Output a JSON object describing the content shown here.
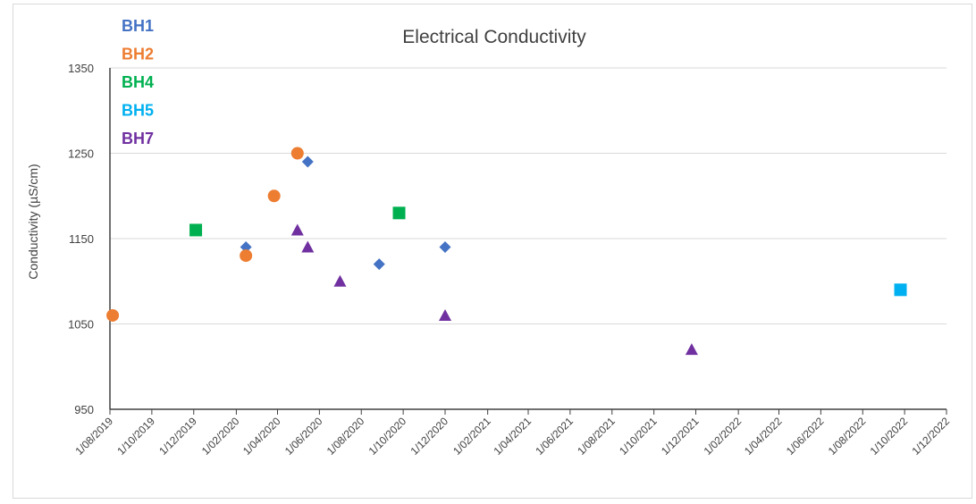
{
  "chart_data": {
    "type": "scatter",
    "title": "Electrical Conductivity",
    "xlabel": "",
    "ylabel": "Conductivity (µS/cm)",
    "xlim": [
      "2019-08-01",
      "2022-12-01"
    ],
    "ylim": [
      950,
      1350
    ],
    "y_ticks": [
      950,
      1050,
      1150,
      1250,
      1350
    ],
    "x_tick_labels": [
      "1/08/2019",
      "1/10/2019",
      "1/12/2019",
      "1/02/2020",
      "1/04/2020",
      "1/06/2020",
      "1/08/2020",
      "1/10/2020",
      "1/12/2020",
      "1/02/2021",
      "1/04/2021",
      "1/06/2021",
      "1/08/2021",
      "1/10/2021",
      "1/12/2021",
      "1/02/2022",
      "1/04/2022",
      "1/06/2022",
      "1/08/2022",
      "1/10/2022",
      "1/12/2022"
    ],
    "grid": "horizontal",
    "legend_position": "top-left",
    "series": [
      {
        "name": "BH1",
        "marker": "diamond",
        "color": "#4472c4",
        "points": [
          {
            "x": "2020-02-15",
            "y": 1140
          },
          {
            "x": "2020-05-15",
            "y": 1240
          },
          {
            "x": "2020-08-27",
            "y": 1120
          },
          {
            "x": "2020-12-01",
            "y": 1140
          }
        ]
      },
      {
        "name": "BH2",
        "marker": "circle",
        "color": "#ed7d31",
        "points": [
          {
            "x": "2019-08-05",
            "y": 1060
          },
          {
            "x": "2020-02-15",
            "y": 1130
          },
          {
            "x": "2020-03-27",
            "y": 1200
          },
          {
            "x": "2020-04-30",
            "y": 1250
          }
        ]
      },
      {
        "name": "BH4",
        "marker": "square",
        "color": "#00b050",
        "points": [
          {
            "x": "2019-12-04",
            "y": 1160
          },
          {
            "x": "2020-09-25",
            "y": 1180
          }
        ]
      },
      {
        "name": "BH5",
        "marker": "square",
        "color": "#00b0f0",
        "points": [
          {
            "x": "2022-09-25",
            "y": 1090
          }
        ]
      },
      {
        "name": "BH7",
        "marker": "triangle",
        "color": "#7030a0",
        "points": [
          {
            "x": "2020-04-30",
            "y": 1160
          },
          {
            "x": "2020-05-15",
            "y": 1140
          },
          {
            "x": "2020-07-01",
            "y": 1100
          },
          {
            "x": "2020-12-01",
            "y": 1060
          },
          {
            "x": "2021-11-25",
            "y": 1020
          }
        ]
      }
    ]
  }
}
